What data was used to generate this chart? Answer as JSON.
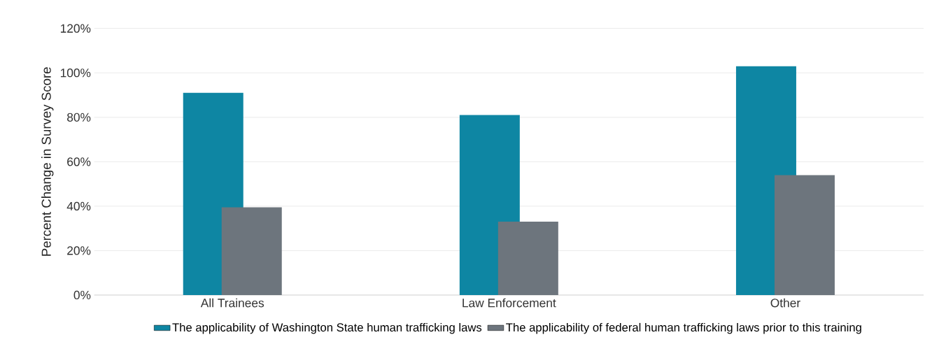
{
  "chart_data": {
    "type": "bar",
    "ylabel": "Percent Change in Survey Score",
    "categories": [
      "All Trainees",
      "Law Enforcement",
      "Other"
    ],
    "series": [
      {
        "name": "The applicability of Washington State human trafficking laws",
        "color": "#0e86a3",
        "values": [
          91,
          81,
          103
        ]
      },
      {
        "name": "The applicability of federal human trafficking laws prior to this training",
        "color": "#6d757d",
        "values": [
          39.5,
          33,
          54
        ]
      }
    ],
    "ylim": [
      0,
      120
    ],
    "yticks": [
      {
        "value": 0,
        "label": "0%"
      },
      {
        "value": 20,
        "label": "20%"
      },
      {
        "value": 40,
        "label": "40%"
      },
      {
        "value": 60,
        "label": "60%"
      },
      {
        "value": 80,
        "label": "80%"
      },
      {
        "value": 100,
        "label": "100%"
      },
      {
        "value": 120,
        "label": "120%"
      }
    ],
    "grid": "y",
    "legend": "bottom"
  }
}
